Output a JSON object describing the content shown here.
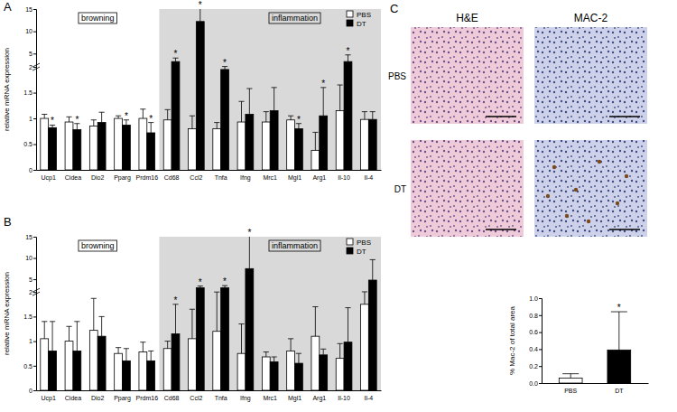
{
  "chart_data": [
    {
      "type": "bar",
      "ylabel": "relative mRNA expression",
      "categories": [
        "Ucp1",
        "Cidea",
        "Dio2",
        "Pparg",
        "Prdm16",
        "Cd68",
        "Ccl2",
        "Tnfa",
        "Ifng",
        "Mrc1",
        "Mgl1",
        "Arg1",
        "Il-10",
        "Il-4"
      ],
      "series": [
        {
          "name": "PBS",
          "color": "#ffffff",
          "values": [
            1.0,
            0.93,
            0.85,
            1.0,
            1.0,
            0.97,
            0.8,
            0.8,
            0.93,
            0.93,
            0.97,
            0.38,
            1.15,
            0.98
          ],
          "error": [
            0.08,
            0.1,
            0.12,
            0.05,
            0.18,
            0.2,
            0.25,
            0.12,
            0.4,
            0.2,
            0.08,
            0.35,
            0.5,
            0.15
          ]
        },
        {
          "name": "DT",
          "color": "#000000",
          "values": [
            0.82,
            0.78,
            0.92,
            0.87,
            0.72,
            3.2,
            12.2,
            1.95,
            1.08,
            1.15,
            0.8,
            1.05,
            3.2,
            0.98
          ],
          "error": [
            0.05,
            0.12,
            0.2,
            0.1,
            0.2,
            0.8,
            3.5,
            0.15,
            0.5,
            0.45,
            0.1,
            0.55,
            1.5,
            0.15
          ],
          "significance": [
            "*",
            "*",
            null,
            "*",
            "*",
            "*",
            "*",
            "*",
            null,
            null,
            "*",
            "*",
            "*",
            null
          ]
        }
      ],
      "ylim": [
        0,
        15
      ],
      "yticks": [
        0,
        0.5,
        1,
        1.5,
        2,
        5,
        10,
        15
      ],
      "ybreak": 2,
      "legend": "top-right",
      "groups": [
        {
          "label": "browning",
          "members": [
            "Ucp1",
            "Cidea",
            "Dio2",
            "Pparg",
            "Prdm16"
          ]
        },
        {
          "label": "inflammation",
          "members": [
            "Cd68",
            "Ccl2",
            "Tnfa",
            "Ifng",
            "Mrc1",
            "Mgl1",
            "Arg1",
            "Il-10",
            "Il-4"
          ]
        }
      ]
    },
    {
      "type": "bar",
      "ylabel": "relative mRNA expression",
      "categories": [
        "Ucp1",
        "Cidea",
        "Dio2",
        "Pparg",
        "Prdm16",
        "Cd68",
        "Ccl2",
        "Tnfa",
        "Ifng",
        "Mrc1",
        "Mgl1",
        "Arg1",
        "Il-10",
        "Il-4"
      ],
      "series": [
        {
          "name": "PBS",
          "color": "#ffffff",
          "values": [
            1.05,
            1.0,
            1.22,
            0.75,
            0.78,
            0.85,
            1.05,
            1.2,
            0.75,
            0.68,
            0.8,
            1.1,
            0.65,
            1.75
          ],
          "error": [
            0.35,
            0.3,
            0.65,
            0.12,
            0.2,
            0.15,
            0.6,
            0.8,
            0.6,
            0.1,
            0.25,
            0.6,
            0.3,
            0.3
          ]
        },
        {
          "name": "DT",
          "color": "#000000",
          "values": [
            0.8,
            0.8,
            1.1,
            0.6,
            0.6,
            1.15,
            3.0,
            3.0,
            7.5,
            0.58,
            0.55,
            0.72,
            0.98,
            4.8
          ],
          "error": [
            0.6,
            0.6,
            0.4,
            0.25,
            0.2,
            0.6,
            0.4,
            0.5,
            8.5,
            0.1,
            0.2,
            0.12,
            0.7,
            4.8
          ],
          "significance": [
            null,
            null,
            null,
            null,
            null,
            "*",
            "*",
            "*",
            "*",
            null,
            null,
            null,
            null,
            null
          ]
        }
      ],
      "ylim": [
        0,
        15
      ],
      "yticks": [
        0,
        0.5,
        1,
        1.5,
        2,
        5,
        10,
        15
      ],
      "ybreak": 2,
      "legend": "top-right",
      "groups": [
        {
          "label": "browning",
          "members": [
            "Ucp1",
            "Cidea",
            "Dio2",
            "Pparg",
            "Prdm16"
          ]
        },
        {
          "label": "inflammation",
          "members": [
            "Cd68",
            "Ccl2",
            "Tnfa",
            "Ifng",
            "Mrc1",
            "Mgl1",
            "Arg1",
            "Il-10",
            "Il-4"
          ]
        }
      ]
    },
    {
      "type": "bar",
      "ylabel": "% Mac-2 of total area",
      "categories": [
        "PBS",
        "DT"
      ],
      "values": [
        0.06,
        0.39
      ],
      "error": [
        0.05,
        0.45
      ],
      "significance": [
        null,
        "*"
      ],
      "colors": [
        "#ffffff",
        "#000000"
      ],
      "ylim": [
        0,
        1
      ],
      "yticks": [
        {
          "value": 0,
          "label": "0.0"
        },
        {
          "value": 0.2,
          "label": "0.2"
        },
        {
          "value": 0.4,
          "label": "0.4"
        },
        {
          "value": 0.6,
          "label": "0.6"
        },
        {
          "value": 0.8,
          "label": "0.8"
        },
        {
          "value": 1,
          "label": "1.0"
        }
      ]
    }
  ],
  "figure": {
    "panel_labels": [
      "A",
      "B",
      "C"
    ],
    "micrographs": {
      "columns": [
        "H&E",
        "MAC-2"
      ],
      "rows": [
        "PBS",
        "DT"
      ]
    }
  }
}
